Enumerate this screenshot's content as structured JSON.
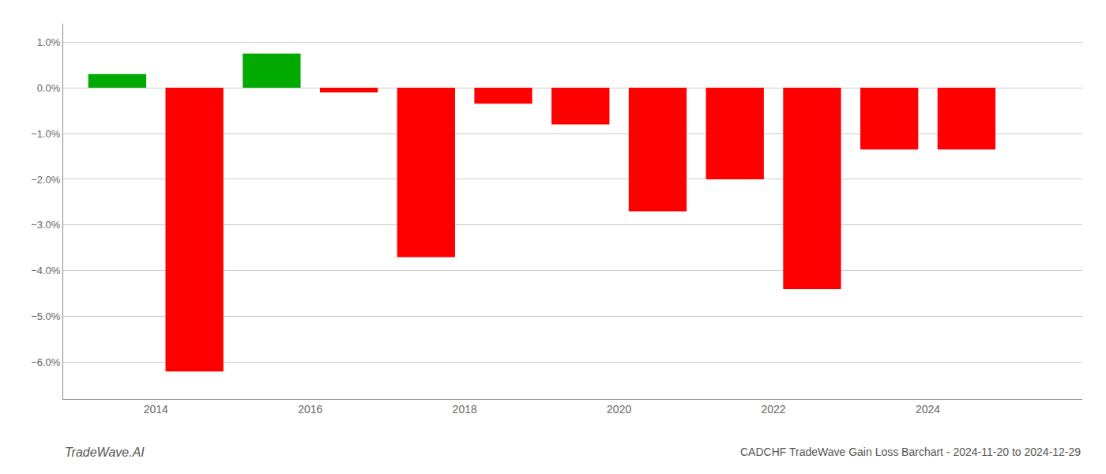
{
  "chart_data": {
    "type": "bar",
    "title": "CADCHF TradeWave Gain Loss Barchart - 2024-11-20 to 2024-12-29",
    "annotations": [
      "TradeWave.AI"
    ],
    "x": [
      2013.5,
      2014.5,
      2015.5,
      2016.5,
      2017.5,
      2018.5,
      2019.5,
      2020.5,
      2021.5,
      2022.5,
      2023.5,
      2024.5
    ],
    "values": [
      0.003,
      -0.062,
      0.0075,
      -0.001,
      -0.037,
      -0.0035,
      -0.008,
      -0.027,
      -0.02,
      -0.044,
      -0.0135,
      -0.0135
    ],
    "colors": [
      "#00aa00",
      "#ff0000",
      "#00aa00",
      "#ff0000",
      "#ff0000",
      "#ff0000",
      "#ff0000",
      "#ff0000",
      "#ff0000",
      "#ff0000",
      "#ff0000",
      "#ff0000"
    ],
    "xlim": [
      2012.8,
      2026.0
    ],
    "xticks": [
      2014,
      2016,
      2018,
      2020,
      2022,
      2024
    ],
    "ylim": [
      -0.068,
      0.014
    ],
    "yticks": [
      {
        "value": -0.06,
        "label": "−6.0%"
      },
      {
        "value": -0.05,
        "label": "−5.0%"
      },
      {
        "value": -0.04,
        "label": "−4.0%"
      },
      {
        "value": -0.03,
        "label": "−3.0%"
      },
      {
        "value": -0.02,
        "label": "−2.0%"
      },
      {
        "value": -0.01,
        "label": "−1.0%"
      },
      {
        "value": 0.0,
        "label": "0.0%"
      },
      {
        "value": 0.01,
        "label": "1.0%"
      }
    ],
    "grid": true
  }
}
